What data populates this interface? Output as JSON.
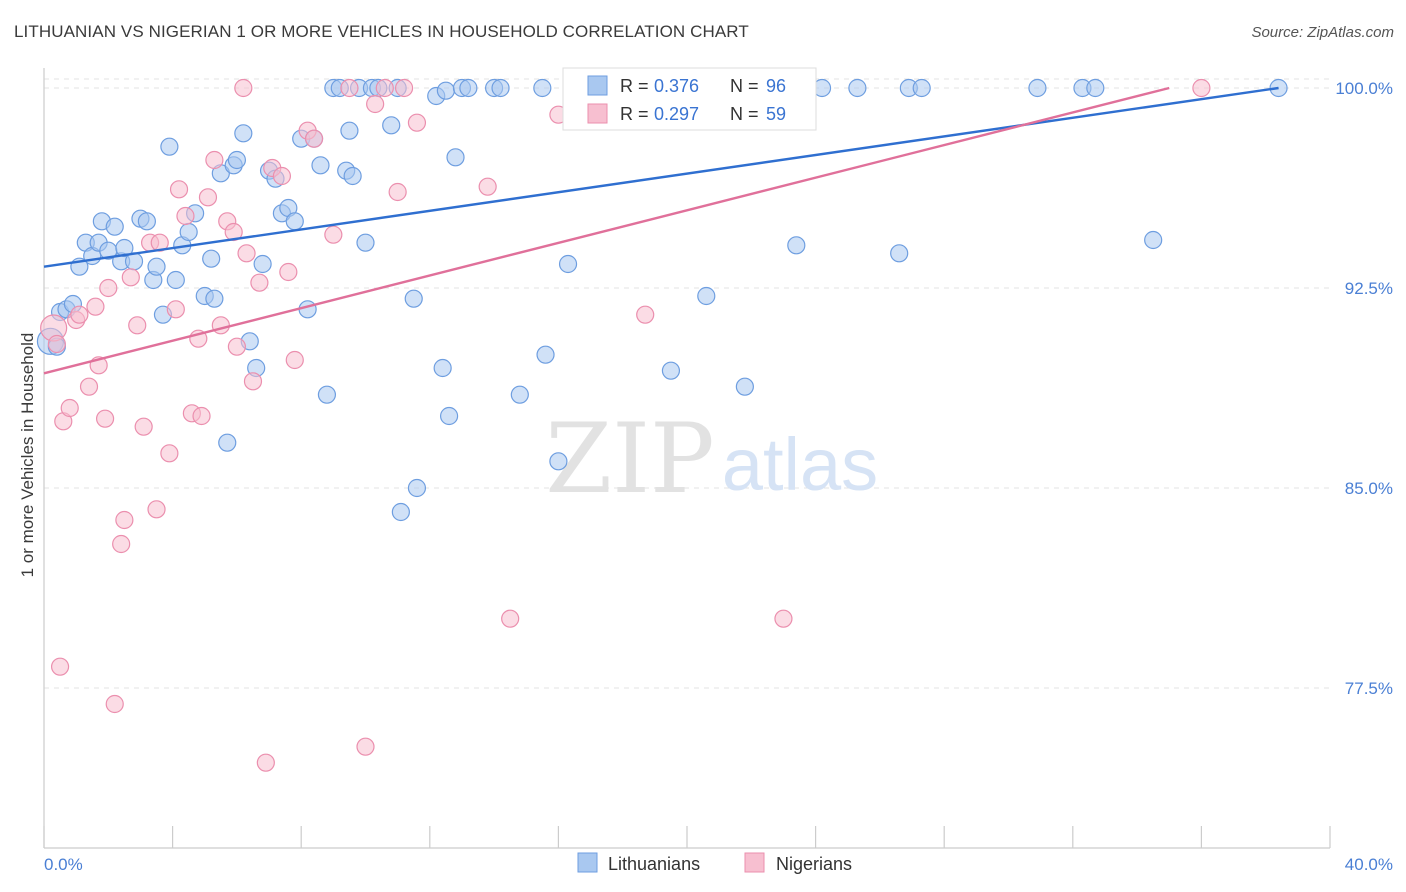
{
  "title": "LITHUANIAN VS NIGERIAN 1 OR MORE VEHICLES IN HOUSEHOLD CORRELATION CHART",
  "source": "Source: ZipAtlas.com",
  "watermark": {
    "zip": "ZIP",
    "atlas": "atlas"
  },
  "colors": {
    "lithuanian_fill": "#a9c8f0",
    "lithuanian_stroke": "#6e9ee0",
    "lithuanian_line": "#2f6fd0",
    "nigerian_fill": "#f7bfd0",
    "nigerian_stroke": "#eb8fae",
    "nigerian_line": "#e0709a",
    "grid": "#e3e3e3",
    "tick_text": "#4a7fd4"
  },
  "legend": {
    "rows": [
      {
        "r_label": "R = ",
        "r_value": "0.376",
        "n_label": "N = ",
        "n_value": "96"
      },
      {
        "r_label": "R = ",
        "r_value": "0.297",
        "n_label": "N = ",
        "n_value": "59"
      }
    ]
  },
  "bottom_legend": [
    "Lithuanians",
    "Nigerians"
  ],
  "chart_data": {
    "type": "scatter",
    "title": "LITHUANIAN VS NIGERIAN 1 OR MORE VEHICLES IN HOUSEHOLD CORRELATION CHART",
    "xlabel": "",
    "ylabel": "1 or more Vehicles in Household",
    "xlim": [
      0,
      40
    ],
    "ylim": [
      71.5,
      101.5
    ],
    "x_tick_labels": [
      "0.0%",
      "40.0%"
    ],
    "y_ticks": [
      77.5,
      85.0,
      92.5,
      100.0
    ],
    "y_tick_labels": [
      "77.5%",
      "85.0%",
      "92.5%",
      "100.0%"
    ],
    "grid": true,
    "legend_position": "top-center",
    "series": [
      {
        "name": "Lithuanians",
        "r": 0.376,
        "n": 96,
        "trend": {
          "x": [
            0,
            38.4
          ],
          "y": [
            93.3,
            100.0
          ]
        },
        "points": [
          [
            0.2,
            90.5
          ],
          [
            0.4,
            90.3
          ],
          [
            0.5,
            91.6
          ],
          [
            0.7,
            91.7
          ],
          [
            0.9,
            91.9
          ],
          [
            1.1,
            93.3
          ],
          [
            1.3,
            94.2
          ],
          [
            1.5,
            93.7
          ],
          [
            1.7,
            94.2
          ],
          [
            1.8,
            95.0
          ],
          [
            2.0,
            93.9
          ],
          [
            2.2,
            94.8
          ],
          [
            2.4,
            93.5
          ],
          [
            2.5,
            94.0
          ],
          [
            2.8,
            93.5
          ],
          [
            3.0,
            95.1
          ],
          [
            3.2,
            95.0
          ],
          [
            3.4,
            92.8
          ],
          [
            3.5,
            93.3
          ],
          [
            3.7,
            91.5
          ],
          [
            3.9,
            97.8
          ],
          [
            4.1,
            92.8
          ],
          [
            4.3,
            94.1
          ],
          [
            4.5,
            94.6
          ],
          [
            4.7,
            95.3
          ],
          [
            5.0,
            92.2
          ],
          [
            5.2,
            93.6
          ],
          [
            5.3,
            92.1
          ],
          [
            5.5,
            96.8
          ],
          [
            5.7,
            86.7
          ],
          [
            5.9,
            97.1
          ],
          [
            6.0,
            97.3
          ],
          [
            6.2,
            98.3
          ],
          [
            6.4,
            90.5
          ],
          [
            6.6,
            89.5
          ],
          [
            6.8,
            93.4
          ],
          [
            7.0,
            96.9
          ],
          [
            7.2,
            96.6
          ],
          [
            7.4,
            95.3
          ],
          [
            7.6,
            95.5
          ],
          [
            7.8,
            95.0
          ],
          [
            8.0,
            98.1
          ],
          [
            8.2,
            91.7
          ],
          [
            8.4,
            98.1
          ],
          [
            8.6,
            97.1
          ],
          [
            8.8,
            88.5
          ],
          [
            9.0,
            100.0
          ],
          [
            9.2,
            100.0
          ],
          [
            9.4,
            96.9
          ],
          [
            9.5,
            98.4
          ],
          [
            9.6,
            96.7
          ],
          [
            9.8,
            100.0
          ],
          [
            10.0,
            94.2
          ],
          [
            10.2,
            100.0
          ],
          [
            10.4,
            100.0
          ],
          [
            10.8,
            98.6
          ],
          [
            11.0,
            100.0
          ],
          [
            11.1,
            84.1
          ],
          [
            11.5,
            92.1
          ],
          [
            11.6,
            85.0
          ],
          [
            12.2,
            99.7
          ],
          [
            12.4,
            89.5
          ],
          [
            12.5,
            99.9
          ],
          [
            12.6,
            87.7
          ],
          [
            12.8,
            97.4
          ],
          [
            13.0,
            100.0
          ],
          [
            13.2,
            100.0
          ],
          [
            14.0,
            100.0
          ],
          [
            14.2,
            100.0
          ],
          [
            14.8,
            88.5
          ],
          [
            15.5,
            100.0
          ],
          [
            15.6,
            90.0
          ],
          [
            16.0,
            86.0
          ],
          [
            16.3,
            93.4
          ],
          [
            17.3,
            100.0
          ],
          [
            17.6,
            100.0
          ],
          [
            18.0,
            100.0
          ],
          [
            18.8,
            100.0
          ],
          [
            19.5,
            89.4
          ],
          [
            20.2,
            100.0
          ],
          [
            20.6,
            92.2
          ],
          [
            21.2,
            100.0
          ],
          [
            21.8,
            88.8
          ],
          [
            22.2,
            100.0
          ],
          [
            22.8,
            100.0
          ],
          [
            23.4,
            94.1
          ],
          [
            24.2,
            100.0
          ],
          [
            25.3,
            100.0
          ],
          [
            26.6,
            93.8
          ],
          [
            26.9,
            100.0
          ],
          [
            27.3,
            100.0
          ],
          [
            30.9,
            100.0
          ],
          [
            32.3,
            100.0
          ],
          [
            32.7,
            100.0
          ],
          [
            34.5,
            94.3
          ],
          [
            38.4,
            100.0
          ]
        ]
      },
      {
        "name": "Nigerians",
        "r": 0.297,
        "n": 59,
        "trend": {
          "x": [
            0,
            35.0
          ],
          "y": [
            89.3,
            100.0
          ]
        },
        "points": [
          [
            0.3,
            91.0
          ],
          [
            0.4,
            90.4
          ],
          [
            0.5,
            78.3
          ],
          [
            0.6,
            87.5
          ],
          [
            0.8,
            88.0
          ],
          [
            1.0,
            91.3
          ],
          [
            1.1,
            91.5
          ],
          [
            1.4,
            88.8
          ],
          [
            1.6,
            91.8
          ],
          [
            1.7,
            89.6
          ],
          [
            1.9,
            87.6
          ],
          [
            2.0,
            92.5
          ],
          [
            2.2,
            76.9
          ],
          [
            2.4,
            82.9
          ],
          [
            2.5,
            83.8
          ],
          [
            2.7,
            92.9
          ],
          [
            2.9,
            91.1
          ],
          [
            3.1,
            87.3
          ],
          [
            3.3,
            94.2
          ],
          [
            3.5,
            84.2
          ],
          [
            3.6,
            94.2
          ],
          [
            3.9,
            86.3
          ],
          [
            4.1,
            91.7
          ],
          [
            4.2,
            96.2
          ],
          [
            4.4,
            95.2
          ],
          [
            4.6,
            87.8
          ],
          [
            4.8,
            90.6
          ],
          [
            4.9,
            87.7
          ],
          [
            5.1,
            95.9
          ],
          [
            5.3,
            97.3
          ],
          [
            5.5,
            91.1
          ],
          [
            5.7,
            95.0
          ],
          [
            5.9,
            94.6
          ],
          [
            6.0,
            90.3
          ],
          [
            6.2,
            100.0
          ],
          [
            6.3,
            93.8
          ],
          [
            6.5,
            89.0
          ],
          [
            6.7,
            92.7
          ],
          [
            6.9,
            74.7
          ],
          [
            7.1,
            97.0
          ],
          [
            7.4,
            96.7
          ],
          [
            7.6,
            93.1
          ],
          [
            7.8,
            89.8
          ],
          [
            8.2,
            98.4
          ],
          [
            8.4,
            98.1
          ],
          [
            9.0,
            94.5
          ],
          [
            9.5,
            100.0
          ],
          [
            10.0,
            75.3
          ],
          [
            10.3,
            99.4
          ],
          [
            10.6,
            100.0
          ],
          [
            11.0,
            96.1
          ],
          [
            11.2,
            100.0
          ],
          [
            11.6,
            98.7
          ],
          [
            13.8,
            96.3
          ],
          [
            14.5,
            80.1
          ],
          [
            16.0,
            99.0
          ],
          [
            18.7,
            91.5
          ],
          [
            23.0,
            80.1
          ],
          [
            36.0,
            100.0
          ]
        ]
      }
    ]
  }
}
